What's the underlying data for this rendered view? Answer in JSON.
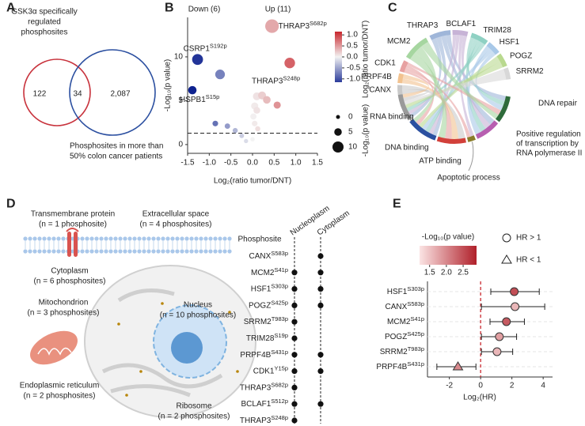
{
  "panel_labels": [
    "A",
    "B",
    "C",
    "D",
    "E"
  ],
  "venn": {
    "left_label": [
      "GSK3α specifically",
      "regulated",
      "phosphosites"
    ],
    "right_label": [
      "Phosphosites in more than",
      "50% colon cancer patients"
    ],
    "counts": [
      "122",
      "34",
      "2,087"
    ],
    "colors": [
      "#c8323c",
      "#2b4fa0"
    ]
  },
  "chart_data": [
    {
      "type": "scatter",
      "annotations": [
        "Down (6)",
        "Up (11)"
      ],
      "xlabel": "Log₂(ratio tumor/DNT)",
      "ylabel": "-Log₁₀(p value)",
      "x": [
        0.45,
        0.86,
        -1.27,
        -1.39,
        -0.75,
        -0.86,
        -0.58,
        -0.4,
        -0.25,
        -0.15,
        0.1,
        0.22,
        0.33,
        0.57,
        0.05,
        0.1,
        0.02,
        0.05,
        0.12,
        0.0
      ],
      "values": [
        13.5,
        9.3,
        9.7,
        6.2,
        8.0,
        2.4,
        2.1,
        1.6,
        1.0,
        0.4,
        5.5,
        5.6,
        5.1,
        4.5,
        4.4,
        3.9,
        3.2,
        2.4,
        1.8,
        0.6
      ],
      "point_labels": [
        {
          "gene": "THRAP3",
          "site": "S682p"
        },
        {
          "gene": "THRAP3",
          "site": "S248p"
        },
        {
          "gene": "CSRP1",
          "site": "S192p"
        },
        {
          "gene": "HSPB1",
          "site": "S15p"
        },
        null,
        null,
        null,
        null,
        null,
        null,
        null,
        null,
        null,
        null,
        null,
        null,
        null,
        null,
        null,
        null
      ],
      "xlim": [
        -1.5,
        1.5
      ],
      "xticks": [
        -1.5,
        {
          "value": -1,
          "label": "-1.0"
        },
        -0.5,
        {
          "value": 0,
          "label": "0.0"
        },
        0.5,
        {
          "value": 1,
          "label": "1.0"
        },
        1.5
      ],
      "ylim": [
        -1,
        14.5
      ],
      "yticks": [
        0,
        5,
        10
      ],
      "threshold": 1.3,
      "colorbar": {
        "label": "Log₂(ratio tumor/DNT)",
        "lim": [
          -1.15,
          1.15
        ],
        "colors": [
          "#2b3c9b",
          "#f2f2f2",
          "#c8272d"
        ],
        "ticks": [
          {
            "value": 1,
            "label": "1.0"
          },
          0.5,
          {
            "value": 0,
            "label": "0.0"
          },
          -0.5,
          {
            "value": -1,
            "label": "-1.0"
          }
        ]
      },
      "size_legend": {
        "label": "-Log₁₀(p value)",
        "values": [
          0,
          5,
          10
        ]
      }
    },
    {
      "type": "forest",
      "xlabel": "Log₂(HR)",
      "categories": [
        {
          "gene": "HSF1",
          "site": "S303p"
        },
        {
          "gene": "CANX",
          "site": "S583p"
        },
        {
          "gene": "MCM2",
          "site": "S41p"
        },
        {
          "gene": "POGZ",
          "site": "S425p"
        },
        {
          "gene": "SRRM2",
          "site": "T983p"
        },
        {
          "gene": "PRPF4B",
          "site": "S431p"
        }
      ],
      "values": [
        2.15,
        2.2,
        1.65,
        1.2,
        1.05,
        -1.45
      ],
      "lower": [
        0.65,
        0.05,
        0.6,
        0.05,
        0.05,
        -2.8
      ],
      "upper": [
        3.75,
        4.1,
        2.8,
        2.3,
        2.05,
        -0.3
      ],
      "pvalues": [
        2.5,
        1.6,
        2.4,
        1.8,
        1.6,
        2.0
      ],
      "xlim": [
        -3.4,
        4.6
      ],
      "xticks": [
        -2,
        0,
        2,
        4
      ],
      "reference_line": 0,
      "colorbar": {
        "label": "-Log₁₀(p value)",
        "lim": [
          1.2,
          2.9
        ],
        "colors": [
          "#fbe4e4",
          "#b0202a"
        ],
        "ticks": [
          1.5,
          {
            "value": 2,
            "label": "2.0"
          },
          2.5
        ]
      },
      "shape_legend": [
        "HR > 1",
        "HR < 1"
      ]
    }
  ],
  "chord": {
    "genes": [
      "THRAP3",
      "BCLAF1",
      "TRIM28",
      "HSF1",
      "POGZ",
      "SRRM2",
      "CANX",
      "PRPF4B",
      "CDK1",
      "MCM2"
    ],
    "terms": [
      [
        "DNA repair"
      ],
      [
        "Positive regulation",
        "of transcription by",
        "RNA polymerase II"
      ],
      [
        "Apoptotic process"
      ],
      [
        "ATP binding"
      ],
      [
        "DNA binding"
      ],
      [
        "RNA binding"
      ]
    ]
  },
  "localization": {
    "compartments": [
      {
        "name": "Transmembrane protein",
        "count": "(n = 1 phosphosite)",
        "color": "#c0392b"
      },
      {
        "name": "Extracellular space",
        "count": "(n = 4 phosphosites)",
        "color": "#222222"
      },
      {
        "name": "Cytoplasm",
        "count": "(n = 6 phosphosites)",
        "color": "#222222"
      },
      {
        "name": "Mitochondrion",
        "count": "(n = 3 phosphosites)",
        "color": "#c0392b"
      },
      {
        "name": "Nucleus",
        "count": "(n = 10 phosphosites)",
        "color": "#2a6bb0"
      },
      {
        "name": "Endoplasmic reticulum",
        "count": "(n = 2 phosphosites)",
        "color": "#b5a21a"
      },
      {
        "name": "Ribosome",
        "count": "(n = 2 phosphosites)",
        "color": "#8a6d1a"
      }
    ],
    "table": {
      "header": [
        "Phosphosite",
        "Nucleoplasm",
        "Cytoplasm"
      ],
      "rows": [
        {
          "gene": "CANX",
          "site": "S583p",
          "nucleoplasm": false,
          "cytoplasm": true
        },
        {
          "gene": "MCM2",
          "site": "S41p",
          "nucleoplasm": true,
          "cytoplasm": true
        },
        {
          "gene": "HSF1",
          "site": "S303p",
          "nucleoplasm": true,
          "cytoplasm": true
        },
        {
          "gene": "POGZ",
          "site": "S425p",
          "nucleoplasm": true,
          "cytoplasm": true
        },
        {
          "gene": "SRRM2",
          "site": "T983p",
          "nucleoplasm": true,
          "cytoplasm": false
        },
        {
          "gene": "TRIM28",
          "site": "S19p",
          "nucleoplasm": true,
          "cytoplasm": false
        },
        {
          "gene": "PRPF4B",
          "site": "S431p",
          "nucleoplasm": true,
          "cytoplasm": true
        },
        {
          "gene": "CDK1",
          "site": "Y15p",
          "nucleoplasm": true,
          "cytoplasm": true
        },
        {
          "gene": "THRAP3",
          "site": "S682p",
          "nucleoplasm": true,
          "cytoplasm": false
        },
        {
          "gene": "BCLAF1",
          "site": "S512p",
          "nucleoplasm": true,
          "cytoplasm": true
        },
        {
          "gene": "THRAP3",
          "site": "S248p",
          "nucleoplasm": true,
          "cytoplasm": false
        }
      ]
    }
  }
}
